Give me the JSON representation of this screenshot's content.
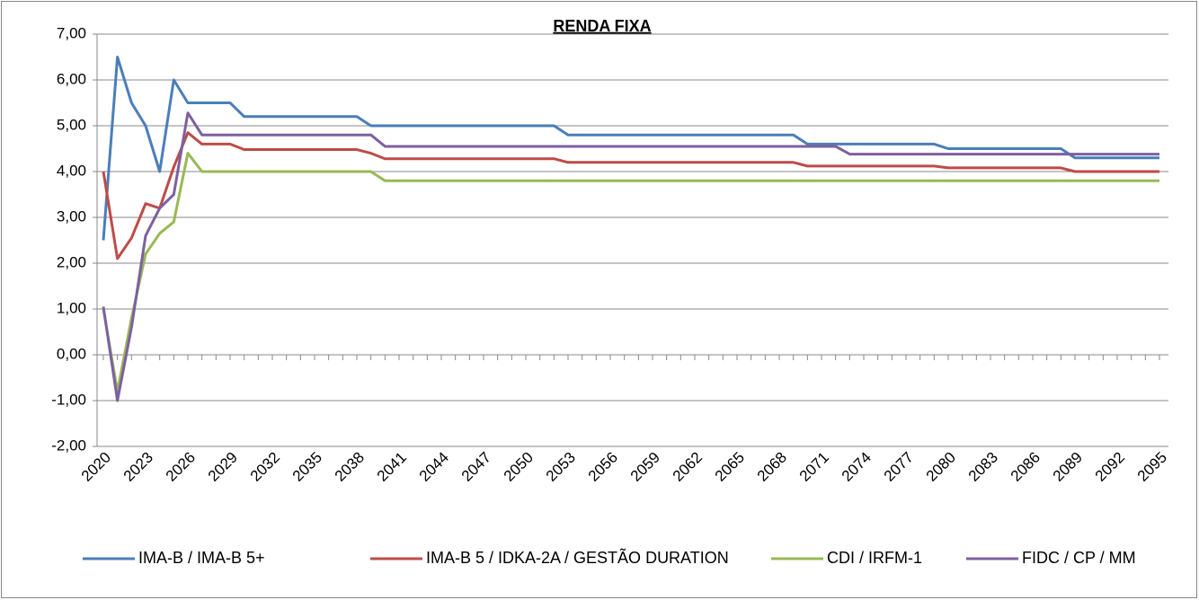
{
  "chart_data": {
    "type": "line",
    "title": "RENDA FIXA",
    "x": [
      2020,
      2021,
      2022,
      2023,
      2024,
      2025,
      2026,
      2027,
      2028,
      2029,
      2030,
      2031,
      2032,
      2033,
      2034,
      2035,
      2036,
      2037,
      2038,
      2039,
      2040,
      2041,
      2042,
      2043,
      2044,
      2045,
      2046,
      2047,
      2048,
      2049,
      2050,
      2051,
      2052,
      2053,
      2054,
      2055,
      2056,
      2057,
      2058,
      2059,
      2060,
      2061,
      2062,
      2063,
      2064,
      2065,
      2066,
      2067,
      2068,
      2069,
      2070,
      2071,
      2072,
      2073,
      2074,
      2075,
      2076,
      2077,
      2078,
      2079,
      2080,
      2081,
      2082,
      2083,
      2084,
      2085,
      2086,
      2087,
      2088,
      2089,
      2090,
      2091,
      2092,
      2093,
      2094,
      2095
    ],
    "xlim": [
      2020,
      2095
    ],
    "xticks": [
      2020,
      2023,
      2026,
      2029,
      2032,
      2035,
      2038,
      2041,
      2044,
      2047,
      2050,
      2053,
      2056,
      2059,
      2062,
      2065,
      2068,
      2071,
      2074,
      2077,
      2080,
      2083,
      2086,
      2089,
      2092,
      2095
    ],
    "ylim": [
      -2,
      7
    ],
    "yticks": [
      {
        "value": -2,
        "label": "-2,00"
      },
      {
        "value": -1,
        "label": "-1,00"
      },
      {
        "value": 0,
        "label": "0,00"
      },
      {
        "value": 1,
        "label": "1,00"
      },
      {
        "value": 2,
        "label": "2,00"
      },
      {
        "value": 3,
        "label": "3,00"
      },
      {
        "value": 4,
        "label": "4,00"
      },
      {
        "value": 5,
        "label": "5,00"
      },
      {
        "value": 6,
        "label": "6,00"
      },
      {
        "value": 7,
        "label": "7,00"
      }
    ],
    "grid": true,
    "legend": "bottom",
    "series": [
      {
        "name": "IMA-B / IMA-B 5+",
        "color": "#4a7ebb",
        "values": [
          2.5,
          6.5,
          5.5,
          5.0,
          4.0,
          6.0,
          5.5,
          5.5,
          5.5,
          5.5,
          5.2,
          5.2,
          5.2,
          5.2,
          5.2,
          5.2,
          5.2,
          5.2,
          5.2,
          5.0,
          5.0,
          5.0,
          5.0,
          5.0,
          5.0,
          5.0,
          5.0,
          5.0,
          5.0,
          5.0,
          5.0,
          5.0,
          5.0,
          4.8,
          4.8,
          4.8,
          4.8,
          4.8,
          4.8,
          4.8,
          4.8,
          4.8,
          4.8,
          4.8,
          4.8,
          4.8,
          4.8,
          4.8,
          4.8,
          4.8,
          4.6,
          4.6,
          4.6,
          4.6,
          4.6,
          4.6,
          4.6,
          4.6,
          4.6,
          4.6,
          4.5,
          4.5,
          4.5,
          4.5,
          4.5,
          4.5,
          4.5,
          4.5,
          4.5,
          4.3,
          4.3,
          4.3,
          4.3,
          4.3,
          4.3,
          4.3
        ]
      },
      {
        "name": "IMA-B 5 / IDKA-2A / GESTÃO DURATION",
        "color": "#be4b48",
        "values": [
          4.0,
          2.1,
          2.55,
          3.3,
          3.2,
          4.1,
          4.85,
          4.6,
          4.6,
          4.6,
          4.48,
          4.48,
          4.48,
          4.48,
          4.48,
          4.48,
          4.48,
          4.48,
          4.48,
          4.4,
          4.28,
          4.28,
          4.28,
          4.28,
          4.28,
          4.28,
          4.28,
          4.28,
          4.28,
          4.28,
          4.28,
          4.28,
          4.28,
          4.2,
          4.2,
          4.2,
          4.2,
          4.2,
          4.2,
          4.2,
          4.2,
          4.2,
          4.2,
          4.2,
          4.2,
          4.2,
          4.2,
          4.2,
          4.2,
          4.2,
          4.12,
          4.12,
          4.12,
          4.12,
          4.12,
          4.12,
          4.12,
          4.12,
          4.12,
          4.12,
          4.08,
          4.08,
          4.08,
          4.08,
          4.08,
          4.08,
          4.08,
          4.08,
          4.08,
          4.0,
          4.0,
          4.0,
          4.0,
          4.0,
          4.0,
          4.0
        ]
      },
      {
        "name": "CDI / IRFM-1",
        "color": "#98b954",
        "values": [
          1.0,
          -0.8,
          0.8,
          2.2,
          2.65,
          2.9,
          4.4,
          4.0,
          4.0,
          4.0,
          4.0,
          4.0,
          4.0,
          4.0,
          4.0,
          4.0,
          4.0,
          4.0,
          4.0,
          4.0,
          3.8,
          3.8,
          3.8,
          3.8,
          3.8,
          3.8,
          3.8,
          3.8,
          3.8,
          3.8,
          3.8,
          3.8,
          3.8,
          3.8,
          3.8,
          3.8,
          3.8,
          3.8,
          3.8,
          3.8,
          3.8,
          3.8,
          3.8,
          3.8,
          3.8,
          3.8,
          3.8,
          3.8,
          3.8,
          3.8,
          3.8,
          3.8,
          3.8,
          3.8,
          3.8,
          3.8,
          3.8,
          3.8,
          3.8,
          3.8,
          3.8,
          3.8,
          3.8,
          3.8,
          3.8,
          3.8,
          3.8,
          3.8,
          3.8,
          3.8,
          3.8,
          3.8,
          3.8,
          3.8,
          3.8,
          3.8
        ]
      },
      {
        "name": "FIDC / CP / MM",
        "color": "#7d60a0",
        "values": [
          1.05,
          -1.0,
          0.6,
          2.6,
          3.2,
          3.5,
          5.28,
          4.8,
          4.8,
          4.8,
          4.8,
          4.8,
          4.8,
          4.8,
          4.8,
          4.8,
          4.8,
          4.8,
          4.8,
          4.8,
          4.55,
          4.55,
          4.55,
          4.55,
          4.55,
          4.55,
          4.55,
          4.55,
          4.55,
          4.55,
          4.55,
          4.55,
          4.55,
          4.55,
          4.55,
          4.55,
          4.55,
          4.55,
          4.55,
          4.55,
          4.55,
          4.55,
          4.55,
          4.55,
          4.55,
          4.55,
          4.55,
          4.55,
          4.55,
          4.55,
          4.55,
          4.55,
          4.55,
          4.38,
          4.38,
          4.38,
          4.38,
          4.38,
          4.38,
          4.38,
          4.38,
          4.38,
          4.38,
          4.38,
          4.38,
          4.38,
          4.38,
          4.38,
          4.38,
          4.38,
          4.38,
          4.38,
          4.38,
          4.38,
          4.38,
          4.38
        ]
      }
    ]
  }
}
